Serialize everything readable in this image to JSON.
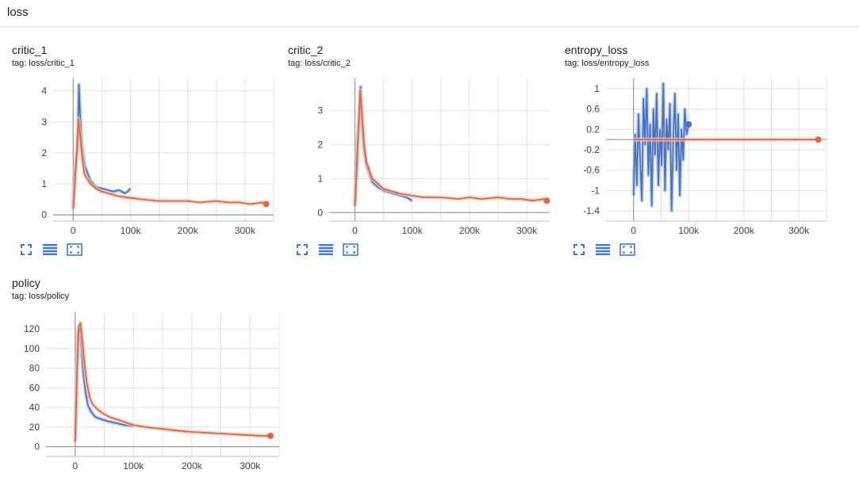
{
  "section": {
    "title": "loss"
  },
  "colors": {
    "blue": "#4a72c0",
    "orange": "#e2653f",
    "blue_light": "#aec5e6",
    "orange_light": "#f6c6b6",
    "grid": "#e0e0e0",
    "axis": "#9e9e9e",
    "icon": "#3f78d6"
  },
  "toolbar_icons": [
    "fullscreen-icon",
    "toggle-log-scale-icon",
    "fit-domain-icon"
  ],
  "chart_data": [
    {
      "id": "critic_1",
      "type": "line",
      "title": "critic_1",
      "subtitle": "tag: loss/critic_1",
      "xlim": [
        -35000,
        350000
      ],
      "ylim": [
        -0.2,
        4.4
      ],
      "xticks": [
        0,
        100000,
        200000,
        300000
      ],
      "xtick_labels": [
        "0",
        "100k",
        "200k",
        "300k"
      ],
      "yticks": [
        0,
        1,
        2,
        3,
        4
      ],
      "ytick_labels": [
        "0",
        "1",
        "2",
        "3",
        "4"
      ],
      "grid": true,
      "series": [
        {
          "color": "blue",
          "x": [
            0,
            2000,
            5000,
            8000,
            10000,
            12000,
            15000,
            20000,
            30000,
            40000,
            50000,
            60000,
            70000,
            80000,
            90000,
            95000,
            100000
          ],
          "y": [
            0.2,
            1.3,
            1.8,
            2.2,
            4.2,
            3.3,
            2.3,
            1.6,
            1.1,
            0.9,
            0.85,
            0.8,
            0.75,
            0.8,
            0.7,
            0.75,
            0.85
          ]
        },
        {
          "color": "orange",
          "x": [
            0,
            3000,
            6000,
            9000,
            12000,
            16000,
            20000,
            30000,
            40000,
            50000,
            60000,
            80000,
            100000,
            120000,
            150000,
            180000,
            200000,
            220000,
            250000,
            270000,
            290000,
            310000,
            330000,
            337000
          ],
          "y": [
            0.2,
            1.0,
            1.9,
            3.1,
            2.6,
            1.8,
            1.3,
            1.0,
            0.85,
            0.75,
            0.7,
            0.6,
            0.55,
            0.5,
            0.45,
            0.45,
            0.45,
            0.4,
            0.45,
            0.4,
            0.4,
            0.35,
            0.4,
            0.35
          ]
        }
      ],
      "end_points": [
        {
          "color": "orange",
          "x": 337000,
          "y": 0.35
        }
      ]
    },
    {
      "id": "critic_2",
      "type": "line",
      "title": "critic_2",
      "subtitle": "tag: loss/critic_2",
      "xlim": [
        -45000,
        340000
      ],
      "ylim": [
        -0.25,
        3.95
      ],
      "xticks": [
        0,
        100000,
        200000,
        300000
      ],
      "xtick_labels": [
        "0",
        "100k",
        "200k",
        "300k"
      ],
      "yticks": [
        0,
        1,
        2,
        3
      ],
      "ytick_labels": [
        "0",
        "1",
        "2",
        "3"
      ],
      "grid": true,
      "series": [
        {
          "color": "blue",
          "x": [
            0,
            2000,
            5000,
            8000,
            10000,
            12000,
            15000,
            20000,
            30000,
            40000,
            50000,
            60000,
            70000,
            80000,
            90000,
            100000
          ],
          "y": [
            0.2,
            1.5,
            2.2,
            2.8,
            3.7,
            2.9,
            2.0,
            1.4,
            0.9,
            0.75,
            0.65,
            0.6,
            0.55,
            0.5,
            0.45,
            0.35
          ]
        },
        {
          "color": "orange",
          "x": [
            0,
            3000,
            6000,
            9000,
            12000,
            16000,
            20000,
            30000,
            40000,
            50000,
            60000,
            80000,
            100000,
            120000,
            150000,
            180000,
            200000,
            220000,
            250000,
            270000,
            290000,
            310000,
            330000,
            335000
          ],
          "y": [
            0.2,
            1.2,
            2.4,
            3.6,
            2.9,
            2.0,
            1.5,
            1.0,
            0.85,
            0.7,
            0.65,
            0.55,
            0.5,
            0.45,
            0.45,
            0.4,
            0.45,
            0.4,
            0.45,
            0.4,
            0.4,
            0.35,
            0.4,
            0.35
          ]
        }
      ],
      "end_points": [
        {
          "color": "orange",
          "x": 335000,
          "y": 0.35
        }
      ]
    },
    {
      "id": "entropy_loss",
      "type": "line",
      "title": "entropy_loss",
      "subtitle": "tag: loss/entropy_loss",
      "xlim": [
        -50000,
        350000
      ],
      "ylim": [
        -1.6,
        1.2
      ],
      "xticks": [
        0,
        100000,
        200000,
        300000
      ],
      "xtick_labels": [
        "0",
        "100k",
        "200k",
        "300k"
      ],
      "yticks": [
        1,
        0.6,
        0.2,
        -0.2,
        -0.6,
        -1,
        -1.4
      ],
      "ytick_labels": [
        "1",
        "0.6",
        "0.2",
        "-0.2",
        "-0.6",
        "-1",
        "-1.4"
      ],
      "grid": true,
      "series": [
        {
          "color": "blue",
          "x": [
            0,
            3000,
            6000,
            9000,
            12000,
            15000,
            18000,
            21000,
            24000,
            27000,
            30000,
            33000,
            36000,
            39000,
            42000,
            45000,
            48000,
            51000,
            54000,
            57000,
            60000,
            63000,
            66000,
            69000,
            72000,
            75000,
            78000,
            81000,
            84000,
            87000,
            90000,
            93000,
            96000,
            100000
          ],
          "y": [
            -1.1,
            0.1,
            -0.9,
            0.5,
            -0.4,
            -1.2,
            0.8,
            -0.1,
            1.0,
            -0.7,
            0.3,
            -1.3,
            0.6,
            -0.3,
            0.9,
            -0.9,
            0.2,
            -0.5,
            1.1,
            -1.0,
            0.4,
            -0.2,
            0.7,
            -1.4,
            0.0,
            0.9,
            -0.6,
            0.5,
            -1.1,
            0.2,
            -0.4,
            0.6,
            0.1,
            0.3
          ]
        },
        {
          "color": "orange",
          "x": [
            0,
            50000,
            100000,
            150000,
            200000,
            250000,
            300000,
            335000
          ],
          "y": [
            0,
            0,
            0,
            0,
            0,
            0,
            0,
            0
          ]
        }
      ],
      "end_points": [
        {
          "color": "blue",
          "x": 100000,
          "y": 0.3
        },
        {
          "color": "orange",
          "x": 335000,
          "y": 0
        }
      ]
    },
    {
      "id": "policy",
      "type": "line",
      "title": "policy",
      "subtitle": "tag: loss/policy",
      "xlim": [
        -50000,
        350000
      ],
      "ylim": [
        -10,
        137
      ],
      "xticks": [
        0,
        100000,
        200000,
        300000
      ],
      "xtick_labels": [
        "0",
        "100k",
        "200k",
        "300k"
      ],
      "yticks": [
        0,
        20,
        40,
        60,
        80,
        100,
        120
      ],
      "ytick_labels": [
        "0",
        "20",
        "40",
        "60",
        "80",
        "100",
        "120"
      ],
      "grid": true,
      "series": [
        {
          "color": "blue",
          "x": [
            0,
            2000,
            5000,
            8000,
            11000,
            14000,
            18000,
            22000,
            28000,
            35000,
            45000,
            55000,
            70000,
            85000,
            100000
          ],
          "y": [
            5,
            60,
            118,
            120,
            100,
            75,
            55,
            42,
            35,
            30,
            28,
            26,
            24,
            22,
            21
          ]
        },
        {
          "color": "orange",
          "x": [
            0,
            3000,
            6000,
            9000,
            12000,
            16000,
            20000,
            25000,
            30000,
            40000,
            50000,
            60000,
            80000,
            100000,
            120000,
            150000,
            180000,
            200000,
            230000,
            260000,
            290000,
            320000,
            335000
          ],
          "y": [
            5,
            70,
            122,
            126,
            110,
            85,
            65,
            50,
            43,
            37,
            33,
            30,
            26,
            22,
            20,
            18,
            16,
            15,
            14,
            13,
            12,
            11,
            11
          ]
        }
      ],
      "end_points": [
        {
          "color": "orange",
          "x": 335000,
          "y": 11
        }
      ]
    }
  ]
}
